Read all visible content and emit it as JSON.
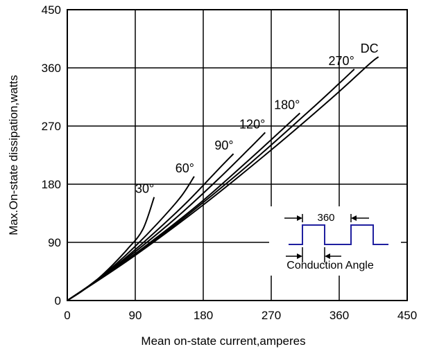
{
  "chart_data": {
    "type": "line",
    "xlabel": "Mean on-state current,amperes",
    "ylabel": "Max.On-state dissipation,watts",
    "xlim": [
      0,
      450
    ],
    "ylim": [
      0,
      450
    ],
    "x_ticks": [
      "0",
      "90",
      "180",
      "270",
      "360",
      "450"
    ],
    "y_ticks": [
      "0",
      "90",
      "180",
      "270",
      "360",
      "450"
    ],
    "grid": true,
    "series": [
      {
        "name": "30°",
        "points": [
          [
            0,
            0
          ],
          [
            20,
            15
          ],
          [
            40,
            33
          ],
          [
            60,
            55
          ],
          [
            80,
            80
          ],
          [
            100,
            110
          ],
          [
            115,
            160
          ]
        ]
      },
      {
        "name": "60°",
        "points": [
          [
            0,
            0
          ],
          [
            30,
            24
          ],
          [
            60,
            52
          ],
          [
            90,
            84
          ],
          [
            120,
            120
          ],
          [
            150,
            160
          ],
          [
            168,
            192
          ]
        ]
      },
      {
        "name": "90°",
        "points": [
          [
            0,
            0
          ],
          [
            40,
            32
          ],
          [
            80,
            69
          ],
          [
            120,
            110
          ],
          [
            160,
            154
          ],
          [
            200,
            203
          ],
          [
            220,
            227
          ]
        ]
      },
      {
        "name": "120°",
        "points": [
          [
            0,
            0
          ],
          [
            50,
            40
          ],
          [
            100,
            85
          ],
          [
            150,
            134
          ],
          [
            200,
            188
          ],
          [
            240,
            234
          ],
          [
            262,
            260
          ]
        ]
      },
      {
        "name": "180°",
        "points": [
          [
            0,
            0
          ],
          [
            60,
            47
          ],
          [
            120,
            99
          ],
          [
            180,
            155
          ],
          [
            240,
            217
          ],
          [
            285,
            265
          ],
          [
            308,
            290
          ]
        ]
      },
      {
        "name": "270°",
        "points": [
          [
            0,
            0
          ],
          [
            80,
            62
          ],
          [
            160,
            133
          ],
          [
            240,
            210
          ],
          [
            320,
            293
          ],
          [
            360,
            336
          ],
          [
            380,
            358
          ]
        ]
      },
      {
        "name": "DC",
        "points": [
          [
            0,
            0
          ],
          [
            90,
            70
          ],
          [
            180,
            148
          ],
          [
            270,
            233
          ],
          [
            350,
            313
          ],
          [
            400,
            366
          ],
          [
            412,
            377
          ]
        ]
      }
    ],
    "annotations": {
      "inset_period_label": "360",
      "inset_caption": "Conduction Angle"
    },
    "colors": {
      "curves": "#000000",
      "grid": "#000000",
      "waveform": "#1f1f9f"
    }
  }
}
